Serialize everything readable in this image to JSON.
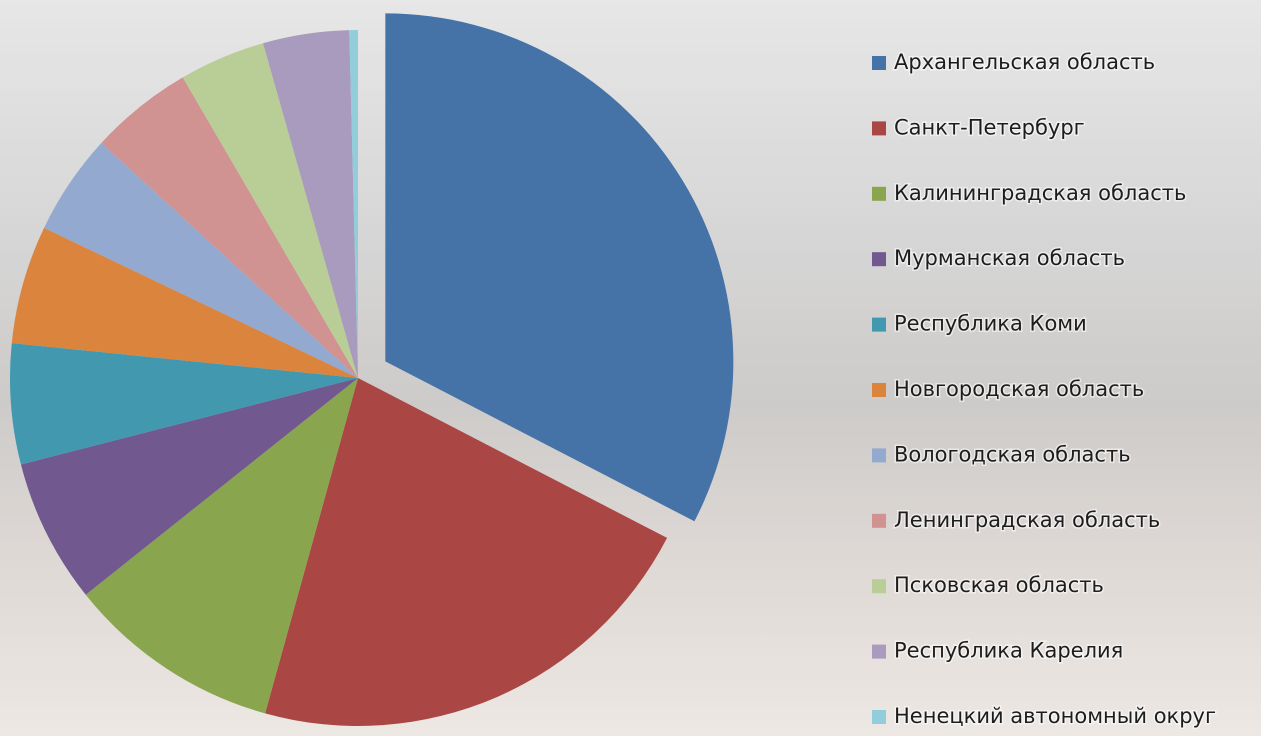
{
  "chart_data": {
    "type": "pie",
    "categories": [
      "Архангельская область",
      "Санкт-Петербург",
      "Калининградская область",
      "Мурманская область",
      "Республика Коми",
      "Новгородская область",
      "Вологодская область",
      "Ленинградская область",
      "Псковская область",
      "Республика Карелия",
      "Ненецкий автономный округ"
    ],
    "values": [
      32.6,
      21.7,
      10,
      6.7,
      5.6,
      5.5,
      4.7,
      4.8,
      4.0,
      4.0,
      0.4
    ],
    "colors": [
      "#4572a7",
      "#aa4643",
      "#89a54e",
      "#71588f",
      "#4198af",
      "#db843d",
      "#93a9cf",
      "#d19392",
      "#b9cd96",
      "#a99bbd",
      "#92cddc"
    ],
    "legend": "right"
  }
}
